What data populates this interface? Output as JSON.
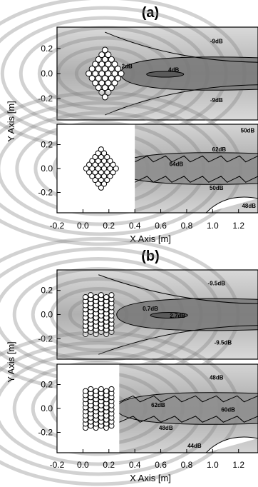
{
  "figure": {
    "colors": {
      "field_dark": "#6a6a6a",
      "field_light": "#d6d6d6",
      "contour": "#000000",
      "element": "#ffffff"
    }
  },
  "chart_data": [
    {
      "id": "a",
      "label": "(a)",
      "type": "heatmap",
      "xlabel": "X Axis [m]",
      "ylabel": "Y Axis [m]",
      "xlim": [
        -0.2,
        1.35
      ],
      "x_ticks": [
        "-0.2",
        "0.0",
        "0.2",
        "0.4",
        "0.6",
        "0.8",
        "1.0",
        "1.2"
      ],
      "plots": [
        {
          "id": "a-top",
          "ylim": [
            -0.37,
            0.37
          ],
          "y_ticks": [
            "0.2",
            "0.0",
            "-0.2"
          ],
          "contour_labels": [
            {
              "text": "-9dB",
              "x": 1.03,
              "y": 0.26
            },
            {
              "text": "2dB",
              "x": 0.34,
              "y": 0.06
            },
            {
              "text": "4dB",
              "x": 0.7,
              "y": 0.03
            },
            {
              "text": "-9dB",
              "x": 1.03,
              "y": -0.21
            }
          ],
          "array_layout": "rhombus",
          "array_center": [
            0.17,
            0.0
          ]
        },
        {
          "id": "a-bottom",
          "ylim": [
            -0.37,
            0.37
          ],
          "y_ticks": [
            "0.2",
            "0.0",
            "-0.2"
          ],
          "masked_region_xmax": 0.4,
          "contour_labels": [
            {
              "text": "50dB",
              "x": 1.27,
              "y": 0.32
            },
            {
              "text": "62dB",
              "x": 1.05,
              "y": 0.16
            },
            {
              "text": "64dB",
              "x": 0.72,
              "y": 0.04
            },
            {
              "text": "50dB",
              "x": 1.03,
              "y": -0.16
            },
            {
              "text": "48dB",
              "x": 1.28,
              "y": -0.31
            }
          ],
          "array_layout": "rhombus",
          "array_center": [
            0.14,
            0.0
          ]
        }
      ]
    },
    {
      "id": "b",
      "label": "(b)",
      "type": "heatmap",
      "xlabel": "X Axis [m]",
      "ylabel": "Y Axis [m]",
      "xlim": [
        -0.2,
        1.35
      ],
      "x_ticks": [
        "-0.2",
        "0.0",
        "0.2",
        "0.4",
        "0.6",
        "0.8",
        "1.0",
        "1.2"
      ],
      "plots": [
        {
          "id": "b-top",
          "ylim": [
            -0.37,
            0.37
          ],
          "y_ticks": [
            "0.2",
            "0.0",
            "-0.2"
          ],
          "contour_labels": [
            {
              "text": "-9.5dB",
              "x": 1.03,
              "y": 0.26
            },
            {
              "text": "0.7dB",
              "x": 0.52,
              "y": 0.05
            },
            {
              "text": "2.7dB",
              "x": 0.73,
              "y": -0.01
            },
            {
              "text": "-9.5dB",
              "x": 1.08,
              "y": -0.23
            }
          ],
          "array_layout": "grid",
          "array_center": [
            0.12,
            0.0
          ]
        },
        {
          "id": "b-bottom",
          "ylim": [
            -0.37,
            0.37
          ],
          "y_ticks": [
            "0.2",
            "0.0",
            "-0.2"
          ],
          "masked_region_xmax": 0.28,
          "contour_labels": [
            {
              "text": "48dB",
              "x": 1.03,
              "y": 0.26
            },
            {
              "text": "62dB",
              "x": 0.58,
              "y": 0.03
            },
            {
              "text": "60dB",
              "x": 1.12,
              "y": -0.01
            },
            {
              "text": "48dB",
              "x": 0.64,
              "y": -0.16
            },
            {
              "text": "44dB",
              "x": 0.86,
              "y": -0.31
            }
          ],
          "array_layout": "grid",
          "array_center": [
            0.12,
            0.0
          ]
        }
      ]
    }
  ]
}
